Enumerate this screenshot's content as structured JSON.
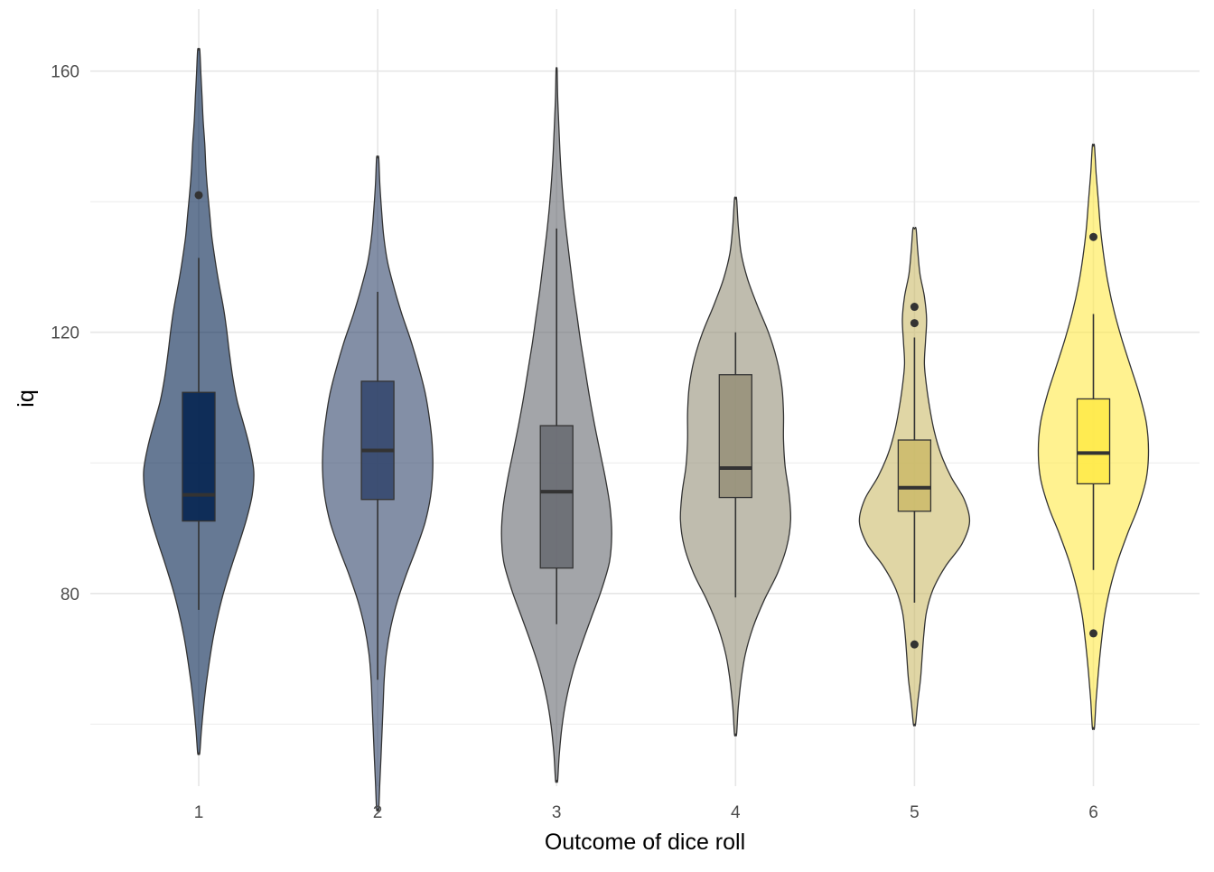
{
  "chart_data": {
    "type": "violin",
    "xlabel": "Outcome of dice roll",
    "ylabel": "iq",
    "categories": [
      "1",
      "2",
      "3",
      "4",
      "5",
      "6"
    ],
    "ylim": [
      50.5,
      169.5
    ],
    "yticks": [
      80,
      120,
      160
    ],
    "yticks_minor": [
      60,
      100,
      140
    ],
    "grid": true,
    "legend": "none",
    "colors": [
      "#00204D",
      "#31446B",
      "#666970",
      "#958F78",
      "#CBBA69",
      "#FFEA46"
    ],
    "series": [
      {
        "category": "1",
        "range": [
          55.6,
          163.2
        ],
        "density": [
          0.02,
          0.05,
          0.09,
          0.14,
          0.2,
          0.27,
          0.36,
          0.47,
          0.6,
          0.74,
          0.87,
          0.97,
          1.0,
          0.93,
          0.82,
          0.7,
          0.62,
          0.56,
          0.51,
          0.45,
          0.37,
          0.3,
          0.24,
          0.2,
          0.16,
          0.13,
          0.11,
          0.08,
          0.06,
          0.04,
          0.02
        ],
        "box": {
          "q1": 91.1,
          "median": 95.1,
          "q3": 110.8,
          "whisker_low": 77.5,
          "whisker_high": 131.4
        },
        "outliers": [
          141.0
        ]
      },
      {
        "category": "2",
        "range": [
          47.0,
          146.7
        ],
        "density": [
          0.02,
          0.04,
          0.06,
          0.08,
          0.1,
          0.12,
          0.16,
          0.24,
          0.36,
          0.52,
          0.7,
          0.86,
          0.96,
          1.0,
          0.99,
          0.94,
          0.86,
          0.74,
          0.6,
          0.44,
          0.3,
          0.18,
          0.11,
          0.07,
          0.04,
          0.02
        ],
        "box": {
          "q1": 94.4,
          "median": 101.9,
          "q3": 112.5,
          "whisker_low": 66.8,
          "whisker_high": 126.2
        },
        "outliers": []
      },
      {
        "category": "3",
        "range": [
          51.4,
          160.2
        ],
        "density": [
          0.02,
          0.05,
          0.1,
          0.18,
          0.3,
          0.46,
          0.64,
          0.82,
          0.96,
          1.0,
          0.97,
          0.89,
          0.79,
          0.69,
          0.6,
          0.52,
          0.44,
          0.37,
          0.3,
          0.24,
          0.18,
          0.13,
          0.09,
          0.06,
          0.04,
          0.02,
          0.01
        ],
        "box": {
          "q1": 83.9,
          "median": 95.6,
          "q3": 105.7,
          "whisker_low": 75.3,
          "whisker_high": 135.9
        },
        "outliers": []
      },
      {
        "category": "4",
        "range": [
          58.5,
          140.4
        ],
        "density": [
          0.02,
          0.05,
          0.1,
          0.18,
          0.32,
          0.52,
          0.76,
          0.93,
          1.0,
          0.97,
          0.9,
          0.87,
          0.87,
          0.84,
          0.75,
          0.6,
          0.4,
          0.22,
          0.1,
          0.05,
          0.02
        ],
        "box": {
          "q1": 94.7,
          "median": 99.2,
          "q3": 113.5,
          "whisker_low": 79.4,
          "whisker_high": 120.0
        },
        "outliers": []
      },
      {
        "category": "5",
        "range": [
          60.0,
          135.8
        ],
        "density": [
          0.02,
          0.06,
          0.11,
          0.14,
          0.17,
          0.22,
          0.34,
          0.56,
          0.86,
          1.0,
          0.9,
          0.66,
          0.48,
          0.36,
          0.28,
          0.22,
          0.18,
          0.2,
          0.22,
          0.18,
          0.1,
          0.06,
          0.03
        ],
        "box": {
          "q1": 92.6,
          "median": 96.2,
          "q3": 103.5,
          "whisker_low": 78.6,
          "whisker_high": 119.2
        },
        "outliers": [
          72.2,
          121.4,
          123.9
        ]
      },
      {
        "category": "6",
        "range": [
          59.5,
          148.5
        ],
        "density": [
          0.02,
          0.05,
          0.09,
          0.14,
          0.2,
          0.3,
          0.44,
          0.62,
          0.82,
          0.96,
          1.0,
          0.96,
          0.84,
          0.68,
          0.52,
          0.38,
          0.27,
          0.19,
          0.13,
          0.09,
          0.05,
          0.02
        ],
        "box": {
          "q1": 96.8,
          "median": 101.5,
          "q3": 109.8,
          "whisker_low": 83.6,
          "whisker_high": 122.8
        },
        "outliers": [
          73.9,
          134.6
        ]
      }
    ]
  }
}
